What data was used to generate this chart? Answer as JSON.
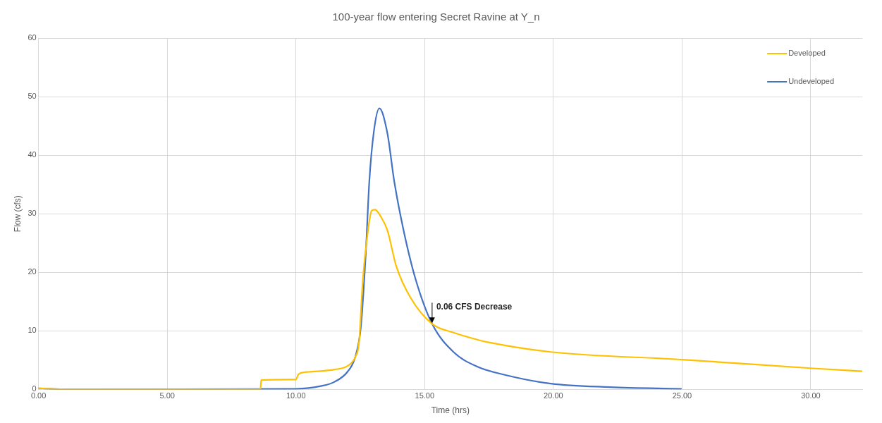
{
  "chart_data": {
    "type": "line",
    "title": "100-year flow entering Secret Ravine at Y_n",
    "xlabel": "Time (hrs)",
    "ylabel": "Flow (cfs)",
    "xlim": [
      0,
      32
    ],
    "xticks": [
      {
        "value": 0,
        "label": "0.00"
      },
      {
        "value": 5,
        "label": "5.00"
      },
      {
        "value": 10,
        "label": "10.00"
      },
      {
        "value": 15,
        "label": "15.00"
      },
      {
        "value": 20,
        "label": "20.00"
      },
      {
        "value": 25,
        "label": "25.00"
      },
      {
        "value": 30,
        "label": "30.00"
      }
    ],
    "ylim": [
      0,
      60
    ],
    "yticks": [
      0,
      10,
      20,
      30,
      40,
      50,
      60
    ],
    "grid": true,
    "legend": "top right",
    "marker": "none",
    "line_style": "solid",
    "series": [
      {
        "name": "Developed",
        "color": "#ffc000",
        "x": [
          0,
          1.2,
          8.62,
          8.65,
          10.0,
          10.1,
          10.5,
          11.5,
          12.0,
          12.3,
          12.45,
          12.6,
          12.8,
          12.94,
          13.07,
          13.3,
          13.55,
          13.9,
          14.46,
          15.29,
          16.12,
          17.04,
          17.42,
          19.9,
          25.0,
          30.08,
          32
        ],
        "values": [
          0.2,
          0,
          0,
          1.6,
          1.7,
          2.6,
          3.0,
          3.4,
          4.0,
          5.5,
          8,
          18.8,
          27.2,
          30.5,
          30.7,
          29.5,
          27.2,
          21,
          15.6,
          11.2,
          9.7,
          8.5,
          8.1,
          6.4,
          5.1,
          3.6,
          3.1
        ]
      },
      {
        "name": "Undeveloped",
        "color": "#4472c4",
        "x": [
          0,
          1.2,
          10.0,
          11.0,
          11.5,
          12.0,
          12.3,
          12.52,
          12.71,
          12.85,
          13.02,
          13.24,
          13.55,
          13.82,
          14.18,
          14.65,
          15.29,
          16.12,
          17.04,
          18.2,
          19.9,
          22.2,
          24.96
        ],
        "values": [
          0.2,
          0,
          0.1,
          0.6,
          1.3,
          3,
          5.5,
          10.6,
          23,
          35.5,
          43.8,
          48.0,
          43.8,
          35.5,
          27.2,
          18.8,
          11.2,
          6.4,
          3.9,
          2.4,
          1.0,
          0.4,
          0.1
        ]
      }
    ],
    "annotations": [
      {
        "text": "0.06 CFS Decrease",
        "x": 15.29,
        "y": 11.2
      }
    ]
  }
}
